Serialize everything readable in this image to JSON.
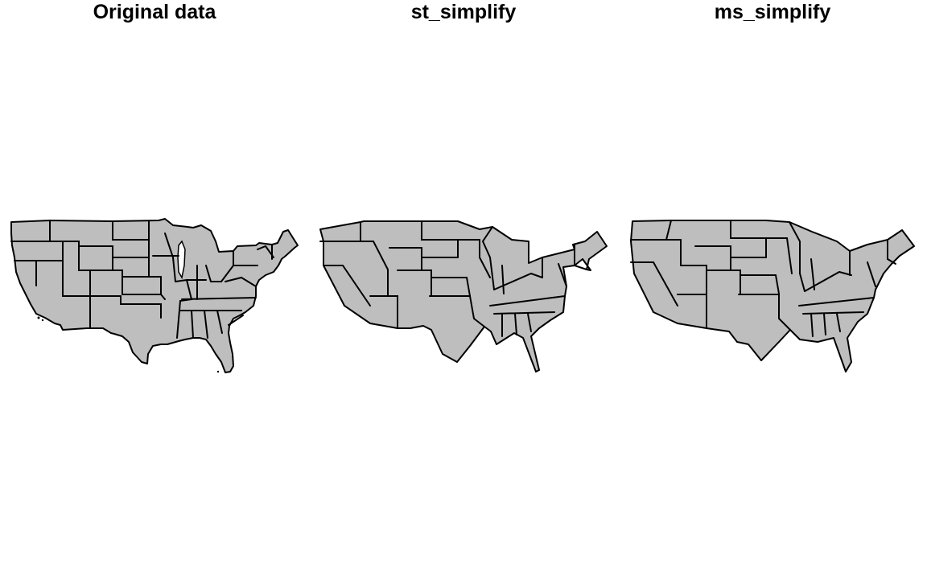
{
  "panels": [
    {
      "id": "original",
      "title": "Original data"
    },
    {
      "id": "st",
      "title": "st_simplify"
    },
    {
      "id": "ms",
      "title": "ms_simplify"
    }
  ],
  "colors": {
    "fill": "#bebebe",
    "stroke": "#000000",
    "background": "#ffffff"
  }
}
